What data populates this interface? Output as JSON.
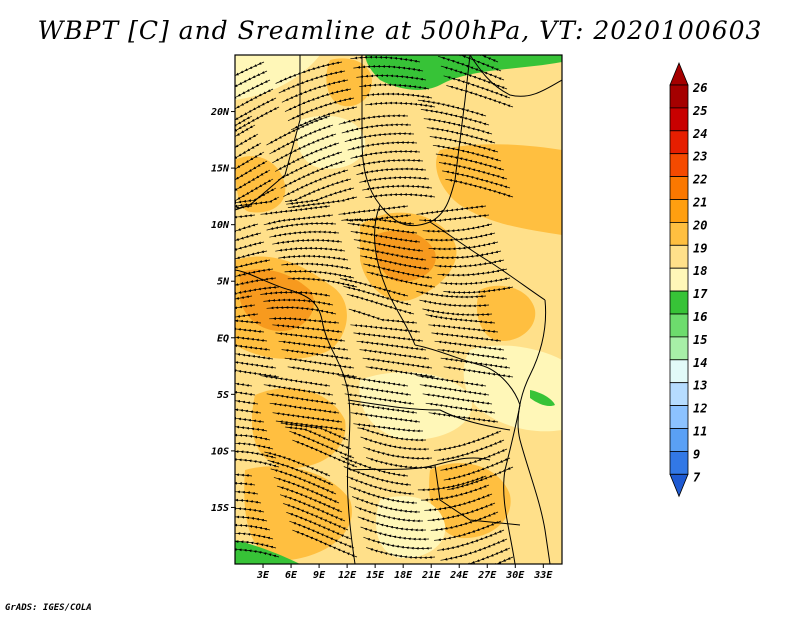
{
  "title": "WBPT [C] and Sreamline at 500hPa, VT: 2020100603",
  "credit": "GrADS: IGES/COLA",
  "map": {
    "lon_range": [
      0,
      35
    ],
    "lat_range": [
      -20,
      25
    ],
    "lat_ticks": [
      {
        "value": 20,
        "label": "20N"
      },
      {
        "value": 15,
        "label": "15N"
      },
      {
        "value": 10,
        "label": "10N"
      },
      {
        "value": 5,
        "label": "5N"
      },
      {
        "value": 0,
        "label": "EQ"
      },
      {
        "value": -5,
        "label": "5S"
      },
      {
        "value": -10,
        "label": "10S"
      },
      {
        "value": -15,
        "label": "15S"
      }
    ],
    "lon_ticks": [
      {
        "value": 3,
        "label": "3E"
      },
      {
        "value": 6,
        "label": "6E"
      },
      {
        "value": 9,
        "label": "9E"
      },
      {
        "value": 12,
        "label": "12E"
      },
      {
        "value": 15,
        "label": "15E"
      },
      {
        "value": 18,
        "label": "18E"
      },
      {
        "value": 21,
        "label": "21E"
      },
      {
        "value": 24,
        "label": "24E"
      },
      {
        "value": 27,
        "label": "27E"
      },
      {
        "value": 30,
        "label": "30E"
      },
      {
        "value": 33,
        "label": "33E"
      }
    ]
  },
  "colorbar": {
    "labels": [
      "26",
      "25",
      "24",
      "23",
      "22",
      "21",
      "20",
      "19",
      "18",
      "17",
      "16",
      "15",
      "14",
      "13",
      "12",
      "11",
      "9",
      "7"
    ],
    "colors": [
      "#a50000",
      "#c80000",
      "#e61e00",
      "#f54a00",
      "#fb7800",
      "#ff9f10",
      "#ffbf40",
      "#ffe08a",
      "#fff7b8",
      "#37c337",
      "#6ddc6d",
      "#a7efa7",
      "#e2faf8",
      "#b6dcff",
      "#8cc2ff",
      "#5aa0f5",
      "#3278e6",
      "#1e5ad2"
    ]
  },
  "field": {
    "base_color": "#ffe08a",
    "light_color": "#fff7b8",
    "orange_color": "#ffbf40",
    "dark_orange_color": "#f79a1e",
    "green_color": "#37c337"
  }
}
